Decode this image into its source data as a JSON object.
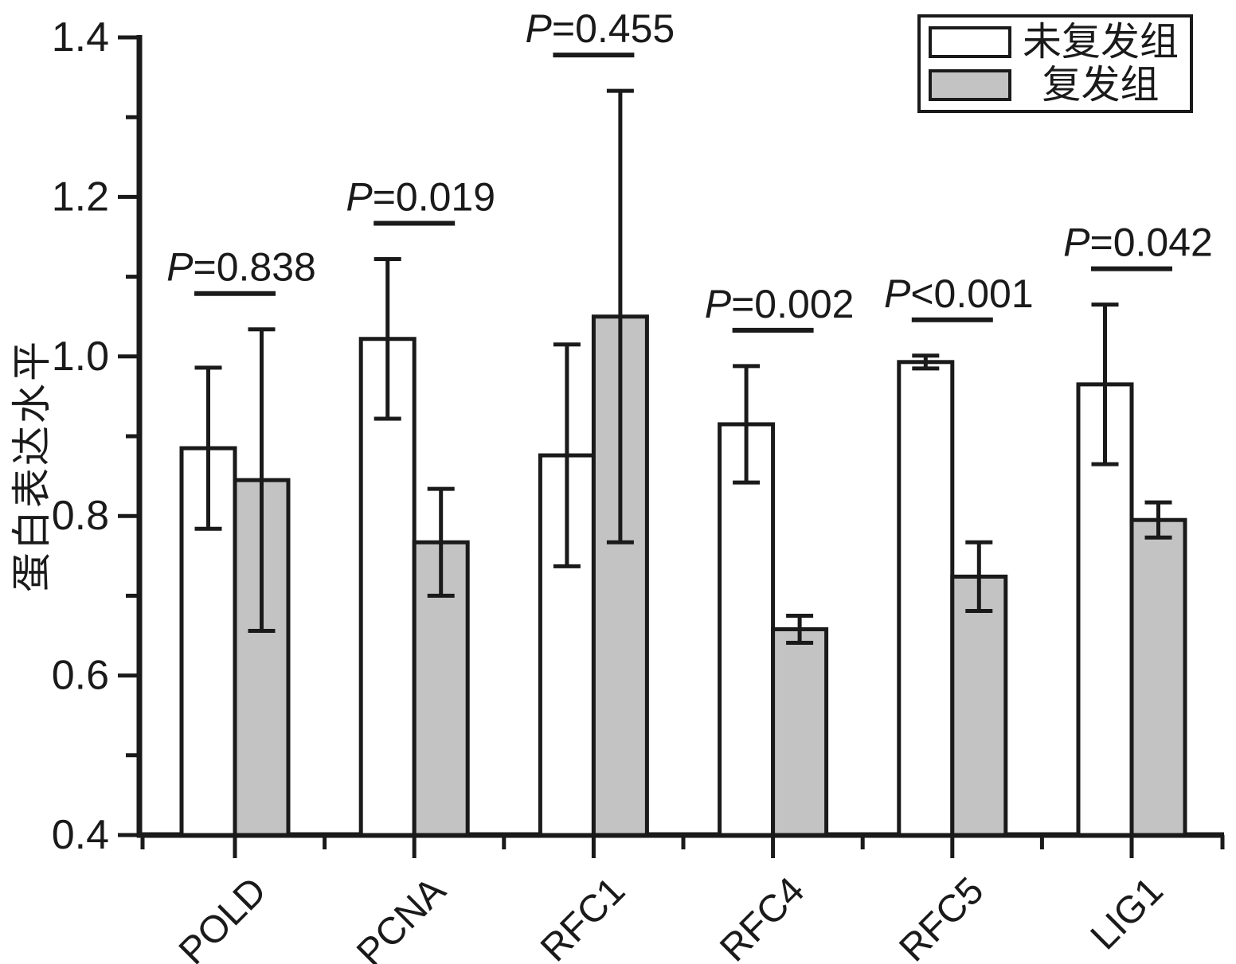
{
  "chart_data": {
    "type": "bar",
    "title": "",
    "xlabel": "",
    "ylabel": "蛋白表达水平",
    "ylim": [
      0.4,
      1.4
    ],
    "ytick_major_step": 0.2,
    "ytick_minor_step": 0.1,
    "ytick_labels": [
      "0.4",
      "0.6",
      "0.8",
      "1.0",
      "1.2",
      "1.4"
    ],
    "grid": false,
    "categories": [
      "POLD",
      "PCNA",
      "RFC1",
      "RFC4",
      "RFC5",
      "LIG1"
    ],
    "series": [
      {
        "name": "未复发组",
        "fill": "#ffffff",
        "values": [
          0.885,
          1.022,
          0.876,
          0.915,
          0.993,
          0.965
        ],
        "errors": [
          0.101,
          0.1,
          0.139,
          0.073,
          0.008,
          0.1
        ]
      },
      {
        "name": "复发组",
        "fill": "#c3c3c3",
        "values": [
          0.845,
          0.767,
          1.05,
          0.658,
          0.724,
          0.795
        ],
        "errors": [
          0.189,
          0.067,
          0.283,
          0.017,
          0.043,
          0.022
        ]
      }
    ],
    "p_labels": [
      "P=0.838",
      "P=0.019",
      "P=0.455",
      "P=0.002",
      "P<0.001",
      "P=0.042"
    ],
    "legend_position": "top-right"
  },
  "style": {
    "ink": "#1a1a1a",
    "background": "#ffffff",
    "gray_fill": "#c3c3c3"
  }
}
